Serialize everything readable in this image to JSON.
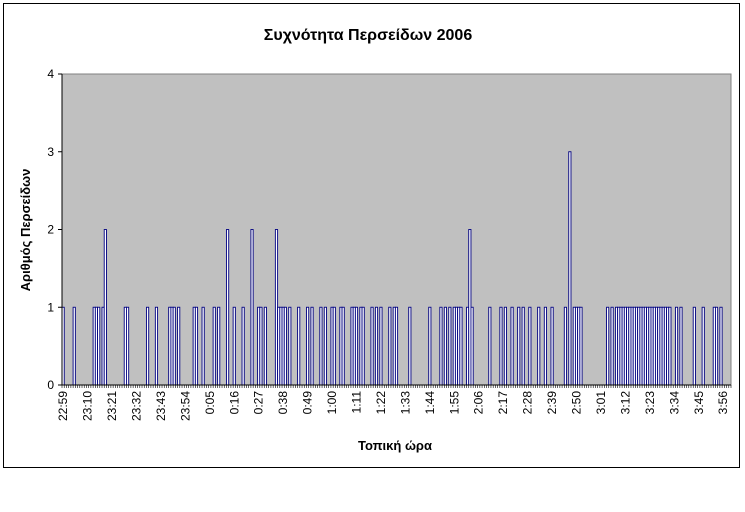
{
  "chart_data": {
    "type": "bar",
    "title": "Συχνότητα Περσείδων 2006",
    "xlabel": "Τοπική ώρα",
    "ylabel": "Αριθμός Περσείδων",
    "ylim": [
      0,
      4
    ],
    "yticks": [
      0,
      1,
      2,
      3,
      4
    ],
    "x_unit": "minutes",
    "x_start": "22:59",
    "x_end": "3:59",
    "xtick_labels": [
      "22:59",
      "23:10",
      "23:21",
      "23:32",
      "23:43",
      "23:54",
      "0:05",
      "0:16",
      "0:27",
      "0:38",
      "0:49",
      "1:00",
      "1:11",
      "1:22",
      "1:33",
      "1:44",
      "1:55",
      "2:06",
      "2:17",
      "2:28",
      "2:39",
      "2:50",
      "3:01",
      "3:12",
      "3:23",
      "3:34",
      "3:45",
      "3:56"
    ],
    "grid": false,
    "legend": "none",
    "plot_background": "#c0c0c0",
    "bar_color": "#000080",
    "x": [
      "22:59",
      "23:04",
      "23:13",
      "23:14",
      "23:15",
      "23:17",
      "23:18",
      "23:27",
      "23:28",
      "23:37",
      "23:41",
      "23:47",
      "23:48",
      "23:49",
      "23:51",
      "23:58",
      "23:59",
      "0:02",
      "0:07",
      "0:09",
      "0:13",
      "0:16",
      "0:20",
      "0:24",
      "0:27",
      "0:28",
      "0:30",
      "0:35",
      "0:36",
      "0:37",
      "0:38",
      "0:39",
      "0:41",
      "0:45",
      "0:49",
      "0:51",
      "0:55",
      "0:57",
      "1:00",
      "1:01",
      "1:04",
      "1:05",
      "1:09",
      "1:10",
      "1:11",
      "1:13",
      "1:14",
      "1:18",
      "1:20",
      "1:22",
      "1:26",
      "1:28",
      "1:29",
      "1:35",
      "1:44",
      "1:49",
      "1:51",
      "1:53",
      "1:55",
      "1:56",
      "1:57",
      "1:58",
      "2:01",
      "2:02",
      "2:03",
      "2:11",
      "2:16",
      "2:18",
      "2:21",
      "2:24",
      "2:26",
      "2:29",
      "2:33",
      "2:36",
      "2:39",
      "2:45",
      "2:47",
      "2:49",
      "2:50",
      "2:51",
      "2:52",
      "3:04",
      "3:06",
      "3:08",
      "3:09",
      "3:10",
      "3:11",
      "3:12",
      "3:13",
      "3:14",
      "3:15",
      "3:16",
      "3:17",
      "3:18",
      "3:19",
      "3:20",
      "3:21",
      "3:22",
      "3:23",
      "3:24",
      "3:25",
      "3:26",
      "3:27",
      "3:28",
      "3:29",
      "3:30",
      "3:31",
      "3:32",
      "3:35",
      "3:37",
      "3:43",
      "3:47",
      "3:52",
      "3:53",
      "3:55"
    ],
    "values": [
      1,
      1,
      1,
      1,
      1,
      1,
      2,
      1,
      1,
      1,
      1,
      1,
      1,
      1,
      1,
      1,
      1,
      1,
      1,
      1,
      2,
      1,
      1,
      2,
      1,
      1,
      1,
      2,
      1,
      1,
      1,
      1,
      1,
      1,
      1,
      1,
      1,
      1,
      1,
      1,
      1,
      1,
      1,
      1,
      1,
      1,
      1,
      1,
      1,
      1,
      1,
      1,
      1,
      1,
      1,
      1,
      1,
      1,
      1,
      1,
      1,
      1,
      1,
      2,
      1,
      1,
      1,
      1,
      1,
      1,
      1,
      1,
      1,
      1,
      1,
      1,
      3,
      1,
      1,
      1,
      1,
      1,
      1,
      1,
      1,
      1,
      1,
      1,
      1,
      1,
      1,
      1,
      1,
      1,
      1,
      1,
      1,
      1,
      1,
      1,
      1,
      1,
      1,
      1,
      1,
      1,
      1,
      1,
      1,
      1,
      1,
      1,
      1,
      1,
      1
    ]
  }
}
